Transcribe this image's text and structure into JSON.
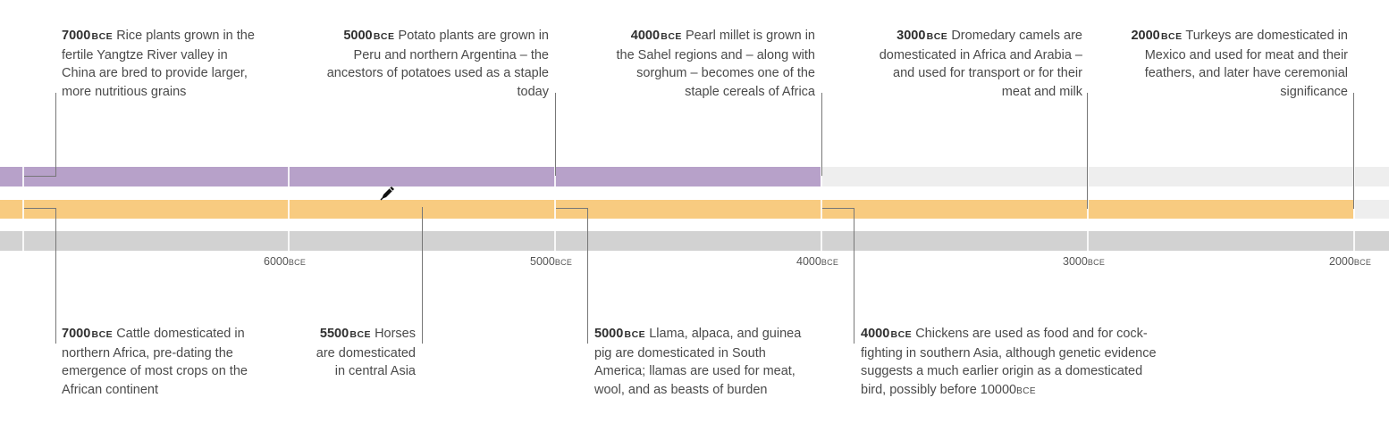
{
  "axis": {
    "unit": "BCE",
    "ticks": [
      {
        "value": "6000",
        "unit": "BCE"
      },
      {
        "value": "5000",
        "unit": "BCE"
      },
      {
        "value": "4000",
        "unit": "BCE"
      },
      {
        "value": "3000",
        "unit": "BCE"
      },
      {
        "value": "2000",
        "unit": "BCE"
      }
    ]
  },
  "top_events": [
    {
      "year": "7000",
      "era": "BCE",
      "text": "Rice plants grown in the fertile Yangtze River valley in China are bred to provide larger, more nutritious grains"
    },
    {
      "year": "5000",
      "era": "BCE",
      "text": "Potato plants are grown in Peru and northern Argentina – the ancestors of potatoes used as a staple today"
    },
    {
      "year": "4000",
      "era": "BCE",
      "text": "Pearl millet is grown in the Sahel regions and – along with sorghum – becomes one of the staple cereals of Africa"
    },
    {
      "year": "3000",
      "era": "BCE",
      "text": "Dromedary camels are domesticated in Africa and Arabia – and used for transport or for their meat and milk"
    },
    {
      "year": "2000",
      "era": "BCE",
      "text": "Turkeys are domesticated in Mexico and used for meat and their feathers, and later have ceremonial significance"
    }
  ],
  "bottom_events": [
    {
      "year": "7000",
      "era": "BCE",
      "text": "Cattle domesticated in northern Africa, pre-dating the emergence of most crops on the African continent"
    },
    {
      "year": "5500",
      "era": "BCE",
      "text": "Horses are domesticated in central Asia"
    },
    {
      "year": "5000",
      "era": "BCE",
      "text": "Llama, alpaca, and guinea pig are domesticated in South America; llamas are used for meat, wool, and as beasts of burden"
    },
    {
      "year": "4000",
      "era": "BCE",
      "text": "Chickens are used as food and for cock-fighting in southern Asia, although genetic evidence suggests a much earlier origin as a domesticated bird, possibly before 10000",
      "tail_era": "BCE"
    }
  ],
  "colors": {
    "crops_band": "#b7a1c9",
    "animals_band": "#f8cb80",
    "axis_band": "#d2d2d2"
  },
  "icons": [
    "pen-cursor-icon"
  ]
}
